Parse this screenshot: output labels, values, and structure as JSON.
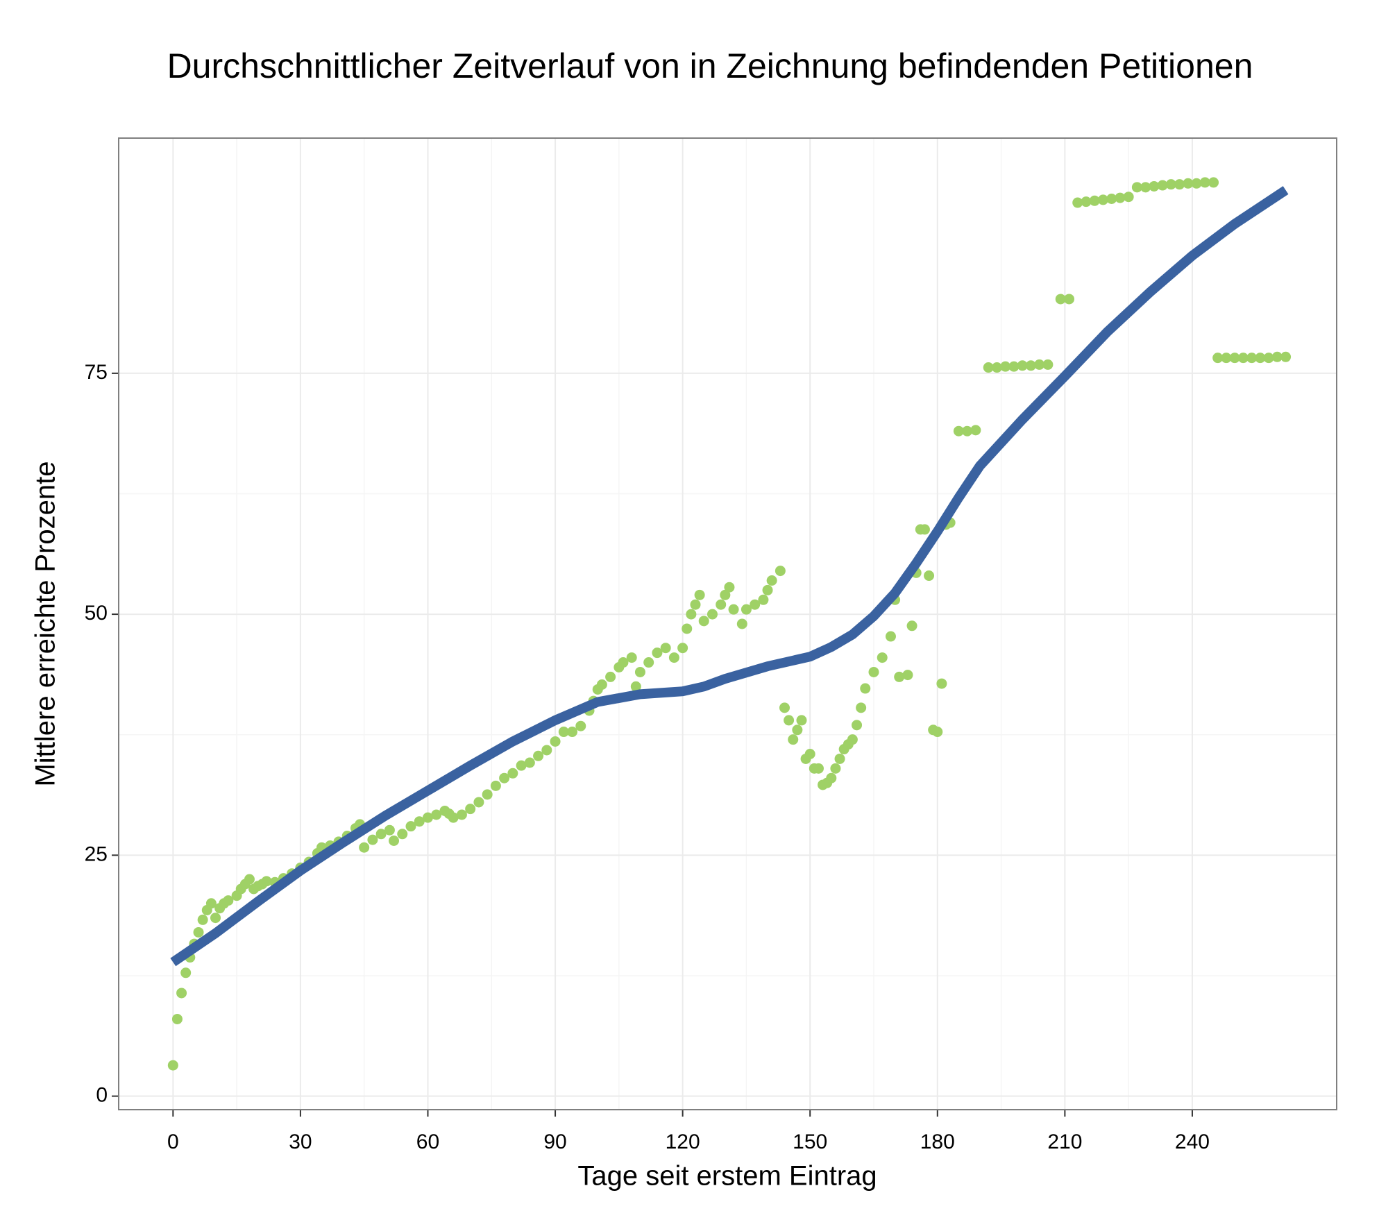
{
  "chart_data": {
    "type": "scatter",
    "title": "Durchschnittlicher Zeitverlauf von in Zeichnung befindenden Petitionen",
    "xlabel": "Tage seit erstem Eintrag",
    "ylabel": "Mittlere erreichte Prozente",
    "xlim": [
      -12.8,
      274
    ],
    "ylim": [
      -1.4,
      99.4
    ],
    "xticks": [
      0,
      30,
      60,
      90,
      120,
      150,
      180,
      210,
      240
    ],
    "yticks": [
      0,
      25,
      50,
      75
    ],
    "grid": true,
    "points": {
      "color": "#9fd166",
      "x": [
        0,
        1,
        2,
        3,
        4,
        5,
        6,
        7,
        8,
        9,
        10,
        11,
        12,
        13,
        15,
        16,
        17,
        18,
        19,
        20,
        21,
        22,
        24,
        26,
        28,
        30,
        32,
        34,
        35,
        37,
        39,
        41,
        43,
        44,
        45,
        47,
        49,
        51,
        52,
        54,
        56,
        58,
        60,
        62,
        64,
        65,
        66,
        68,
        70,
        72,
        74,
        76,
        78,
        80,
        82,
        84,
        86,
        88,
        90,
        92,
        94,
        96,
        98,
        99,
        100,
        101,
        103,
        105,
        106,
        108,
        109,
        110,
        112,
        114,
        116,
        118,
        120,
        121,
        122,
        123,
        124,
        125,
        127,
        129,
        130,
        131,
        132,
        134,
        135,
        137,
        139,
        140,
        141,
        143,
        144,
        145,
        146,
        147,
        148,
        149,
        150,
        151,
        152,
        153,
        154,
        155,
        156,
        157,
        158,
        159,
        160,
        161,
        162,
        163,
        165,
        167,
        169,
        170,
        171,
        173,
        174,
        175,
        176,
        177,
        178,
        179,
        180,
        181,
        182,
        183,
        185,
        187,
        189,
        192,
        194,
        196,
        198,
        200,
        202,
        204,
        206,
        209,
        211,
        213,
        215,
        217,
        219,
        221,
        223,
        225,
        227,
        229,
        231,
        233,
        235,
        237,
        239,
        241,
        243,
        245,
        246,
        248,
        250,
        252,
        254,
        256,
        258,
        260,
        262
      ],
      "y": [
        3.2,
        8,
        10.7,
        12.8,
        14.4,
        15.8,
        17,
        18.3,
        19.3,
        20,
        18.5,
        19.5,
        20,
        20.3,
        20.8,
        21.5,
        22,
        22.5,
        21.5,
        21.8,
        22,
        22.3,
        22.2,
        22.6,
        23.1,
        23.7,
        24.3,
        25.2,
        25.8,
        26,
        26.4,
        27,
        27.8,
        28.2,
        25.8,
        26.6,
        27.2,
        27.6,
        26.5,
        27.2,
        28,
        28.5,
        28.9,
        29.2,
        29.6,
        29.3,
        28.9,
        29.2,
        29.8,
        30.5,
        31.3,
        32.2,
        33,
        33.5,
        34.3,
        34.6,
        35.3,
        35.9,
        36.8,
        37.8,
        37.8,
        38.4,
        40,
        41,
        42.2,
        42.7,
        43.5,
        44.5,
        45,
        45.5,
        42.5,
        44,
        45,
        46,
        46.5,
        45.5,
        46.5,
        48.5,
        50,
        51,
        52,
        49.3,
        50,
        51,
        52,
        52.8,
        50.5,
        49,
        50.5,
        51,
        51.5,
        52.5,
        53.5,
        54.5,
        40.3,
        39,
        37,
        38,
        39,
        35,
        35.5,
        34,
        34,
        32.3,
        32.5,
        33,
        34,
        35,
        36,
        36.5,
        37,
        38.5,
        40.3,
        42.3,
        44,
        45.5,
        47.7,
        51.5,
        43.5,
        43.7,
        48.8,
        54.3,
        58.8,
        58.8,
        54,
        38,
        37.8,
        42.8,
        59.3,
        59.5,
        69,
        69,
        69.1,
        75.6,
        75.6,
        75.7,
        75.7,
        75.8,
        75.8,
        75.9,
        75.9,
        82.7,
        82.7,
        92.7,
        92.8,
        92.9,
        93,
        93.1,
        93.2,
        93.3,
        94.3,
        94.3,
        94.4,
        94.5,
        94.6,
        94.6,
        94.7,
        94.7,
        94.8,
        94.8,
        76.6,
        76.6,
        76.6,
        76.6,
        76.6,
        76.6,
        76.6,
        76.7,
        76.7
      ]
    },
    "smooth": {
      "color": "#3a62a0",
      "x": [
        0,
        10,
        20,
        30,
        40,
        50,
        60,
        70,
        80,
        90,
        100,
        110,
        120,
        125,
        130,
        140,
        150,
        155,
        160,
        165,
        170,
        175,
        180,
        185,
        190,
        200,
        210,
        220,
        230,
        240,
        250,
        262
      ],
      "y": [
        13.9,
        16.9,
        20.2,
        23.4,
        26.3,
        29.1,
        31.7,
        34.3,
        36.8,
        39,
        40.9,
        41.7,
        42,
        42.5,
        43.3,
        44.6,
        45.6,
        46.6,
        47.9,
        49.8,
        52.2,
        55.3,
        58.6,
        62.1,
        65.4,
        70.2,
        74.7,
        79.3,
        83.4,
        87.2,
        90.5,
        94
      ]
    }
  }
}
